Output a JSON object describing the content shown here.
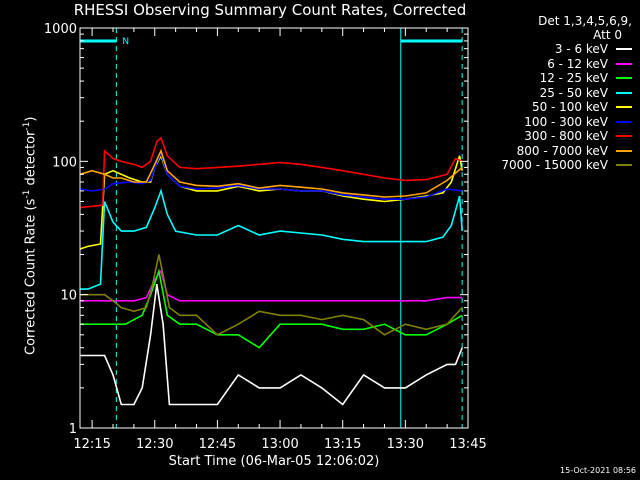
{
  "chart_data": {
    "type": "line",
    "title": "RHESSI Observing Summary Count Rates, Corrected",
    "xlabel": "Start Time (06-Mar-05 12:06:02)",
    "ylabel": "Corrected Count Rate (s",
    "ylabel_sup1": "-1",
    "ylabel_mid": " detector",
    "ylabel_sup2": "-1",
    "ylabel_end": ")",
    "yscale": "log",
    "ylim": [
      1,
      1000
    ],
    "xlim_minutes": [
      12.1,
      105.0
    ],
    "y_ticks": [
      "1",
      "10",
      "100",
      "1000"
    ],
    "x_ticks": [
      {
        "t": 15,
        "label": "12:15"
      },
      {
        "t": 30,
        "label": "12:30"
      },
      {
        "t": 45,
        "label": "12:45"
      },
      {
        "t": 60,
        "label": "13:00"
      },
      {
        "t": 75,
        "label": "13:15"
      },
      {
        "t": 90,
        "label": "13:30"
      },
      {
        "t": 105,
        "label": "13:45"
      }
    ],
    "legend_header": [
      "Det 1,3,4,5,6,9,",
      "Att 0"
    ],
    "night_marker_label": "N",
    "night_intervals": [
      [
        12.1,
        20.8
      ],
      [
        88.9,
        103.6
      ]
    ],
    "timestamp": "15-Oct-2021 08:56",
    "series": [
      {
        "name": "3 - 6 keV",
        "color": "#ffffff",
        "times": [
          12.1,
          14,
          16,
          18,
          20,
          22,
          25,
          27,
          29,
          30.5,
          32,
          33.5,
          36,
          40,
          45,
          50,
          55,
          60,
          65,
          70,
          75,
          80,
          85,
          90,
          95,
          100,
          102,
          103.6
        ],
        "values": [
          3.5,
          3.5,
          3.5,
          3.5,
          2.5,
          1.5,
          1.5,
          2,
          5,
          12,
          6,
          1.5,
          1.5,
          1.5,
          1.5,
          2.5,
          2,
          2,
          2.5,
          2,
          1.5,
          2.5,
          2,
          2,
          2.5,
          3,
          3,
          4
        ]
      },
      {
        "name": "6 - 12 keV",
        "color": "#ff00ff",
        "times": [
          12.1,
          15,
          18,
          20,
          22,
          25,
          28,
          30,
          31.5,
          33,
          36,
          40,
          50,
          60,
          70,
          80,
          90,
          95,
          100,
          103.6
        ],
        "values": [
          9,
          9,
          9,
          9,
          9,
          9,
          9.5,
          13,
          15,
          10,
          9,
          9,
          9,
          9,
          9,
          9,
          9,
          9,
          9.5,
          9.5
        ]
      },
      {
        "name": "12 - 25 keV",
        "color": "#00ff00",
        "times": [
          12.1,
          15,
          18,
          20,
          23,
          27,
          29,
          31,
          33,
          36,
          40,
          45,
          50,
          55,
          60,
          65,
          70,
          75,
          80,
          85,
          90,
          95,
          100,
          103.6
        ],
        "values": [
          6,
          6,
          6,
          6,
          6,
          7,
          10,
          15,
          7,
          6,
          6,
          5,
          5,
          4,
          6,
          6,
          6,
          5.5,
          5.5,
          6,
          5,
          5,
          6,
          7
        ]
      },
      {
        "name": "25 - 50 keV",
        "color": "#00ffff",
        "times": [
          12.1,
          14,
          17,
          18,
          20,
          22,
          25,
          28,
          30,
          31.5,
          33,
          35,
          40,
          45,
          50,
          55,
          60,
          65,
          70,
          75,
          80,
          85,
          90,
          95,
          99,
          101,
          103,
          103.6
        ],
        "values": [
          11,
          11,
          12,
          50,
          35,
          30,
          30,
          32,
          45,
          60,
          40,
          30,
          28,
          28,
          33,
          28,
          30,
          29,
          28,
          26,
          25,
          25,
          25,
          25,
          27,
          33,
          55,
          30
        ]
      },
      {
        "name": "50 - 100 keV",
        "color": "#ffff00",
        "times": [
          12.1,
          14,
          17,
          18,
          20,
          24,
          27,
          29,
          30,
          31.5,
          33,
          36,
          40,
          45,
          50,
          55,
          60,
          65,
          70,
          75,
          80,
          85,
          90,
          95,
          99,
          101,
          103,
          103.6
        ],
        "values": [
          22,
          23,
          24,
          80,
          85,
          75,
          70,
          70,
          90,
          110,
          80,
          65,
          60,
          60,
          65,
          60,
          62,
          60,
          60,
          55,
          52,
          50,
          52,
          55,
          58,
          70,
          110,
          85
        ]
      },
      {
        "name": "100 - 300 keV",
        "color": "#0000ff",
        "times": [
          12.1,
          15,
          18,
          20,
          24,
          27,
          29,
          30,
          31.5,
          33,
          36,
          40,
          45,
          50,
          55,
          60,
          65,
          70,
          75,
          80,
          85,
          90,
          95,
          100,
          103.6
        ],
        "values": [
          62,
          60,
          62,
          68,
          70,
          68,
          72,
          90,
          115,
          80,
          65,
          62,
          63,
          66,
          62,
          62,
          60,
          60,
          56,
          54,
          52,
          52,
          54,
          62,
          60
        ]
      },
      {
        "name": "300 - 800 keV",
        "color": "#ff0000",
        "times": [
          12.1,
          15,
          17.5,
          18,
          20,
          22,
          25,
          27,
          29,
          30.5,
          31.5,
          33,
          36,
          40,
          45,
          50,
          55,
          60,
          65,
          70,
          75,
          80,
          85,
          90,
          95,
          100,
          102,
          103.6
        ],
        "values": [
          45,
          46,
          47,
          120,
          105,
          100,
          95,
          90,
          100,
          140,
          150,
          110,
          90,
          88,
          90,
          92,
          95,
          98,
          95,
          90,
          85,
          80,
          75,
          72,
          73,
          80,
          105,
          100
        ]
      },
      {
        "name": "800 - 7000 keV",
        "color": "#ffa500",
        "times": [
          12.1,
          15,
          18,
          20,
          22,
          25,
          28,
          30,
          31.5,
          33,
          36,
          40,
          45,
          50,
          55,
          60,
          65,
          70,
          75,
          80,
          85,
          90,
          95,
          100,
          103.6
        ],
        "values": [
          80,
          85,
          80,
          75,
          75,
          70,
          70,
          95,
          120,
          85,
          70,
          66,
          65,
          68,
          63,
          66,
          64,
          62,
          58,
          56,
          54,
          55,
          58,
          72,
          90
        ]
      },
      {
        "name": "7000 - 15000 keV",
        "color": "#808000",
        "times": [
          12.1,
          15,
          18,
          20,
          22,
          25,
          28,
          29.5,
          31,
          32,
          33.5,
          36,
          40,
          45,
          50,
          55,
          60,
          65,
          70,
          75,
          80,
          85,
          90,
          95,
          100,
          103.6
        ],
        "values": [
          10,
          10,
          10,
          9,
          8,
          7.5,
          8,
          12,
          20,
          14,
          8,
          7,
          7,
          5,
          6,
          7.5,
          7,
          7,
          6.5,
          7,
          6.5,
          5,
          6,
          5.5,
          6,
          8
        ]
      }
    ]
  }
}
